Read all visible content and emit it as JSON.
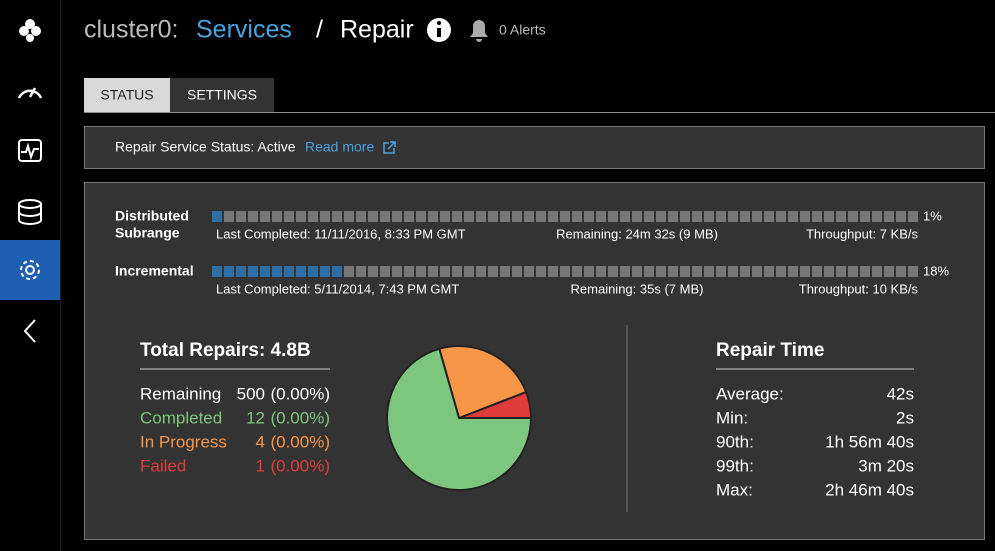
{
  "header": {
    "cluster": "cluster0:",
    "service": "Services",
    "separator": "/",
    "page": "Repair",
    "alerts": "0 Alerts"
  },
  "tabs": [
    "STATUS",
    "SETTINGS"
  ],
  "status": {
    "label": "Repair Service Status: Active",
    "link": "Read more"
  },
  "repairs": [
    {
      "name": [
        "Distributed",
        "Subrange"
      ],
      "progress": {
        "value": 1,
        "label": "1%"
      },
      "last_completed": "Last Completed: 11/11/2016, 8:33 PM GMT",
      "remaining": "Remaining: 24m 32s (9 MB)",
      "throughput": "Throughput: 7 KB/s"
    },
    {
      "name": [
        "Incremental"
      ],
      "progress": {
        "value": 18,
        "label": "18%"
      },
      "last_completed": "Last Completed: 5/11/2014, 7:43 PM GMT",
      "remaining": "Remaining: 35s (7 MB)",
      "throughput": "Throughput: 10 KB/s"
    }
  ],
  "totals": {
    "title": "Total Repairs: 4.8B",
    "rows": [
      {
        "label": "Remaining",
        "count": 500,
        "percent": "(0.00%)",
        "color": "#ffffff"
      },
      {
        "label": "Completed",
        "count": 12,
        "percent": "(0.00%)",
        "color": "#7dc67d"
      },
      {
        "label": "In Progress",
        "count": 4,
        "percent": "(0.00%)",
        "color": "#f79646"
      },
      {
        "label": "Failed",
        "count": 1,
        "percent": "(0.00%)",
        "color": "#e03c3c"
      }
    ]
  },
  "repair_time": {
    "title": "Repair Time",
    "rows": [
      {
        "label": "Average:",
        "value": "42s"
      },
      {
        "label": "Min:",
        "value": "2s"
      },
      {
        "label": "90th:",
        "value": "1h 56m 40s"
      },
      {
        "label": "99th:",
        "value": "3m 20s"
      },
      {
        "label": "Max:",
        "value": "2h 46m 40s"
      }
    ]
  }
}
